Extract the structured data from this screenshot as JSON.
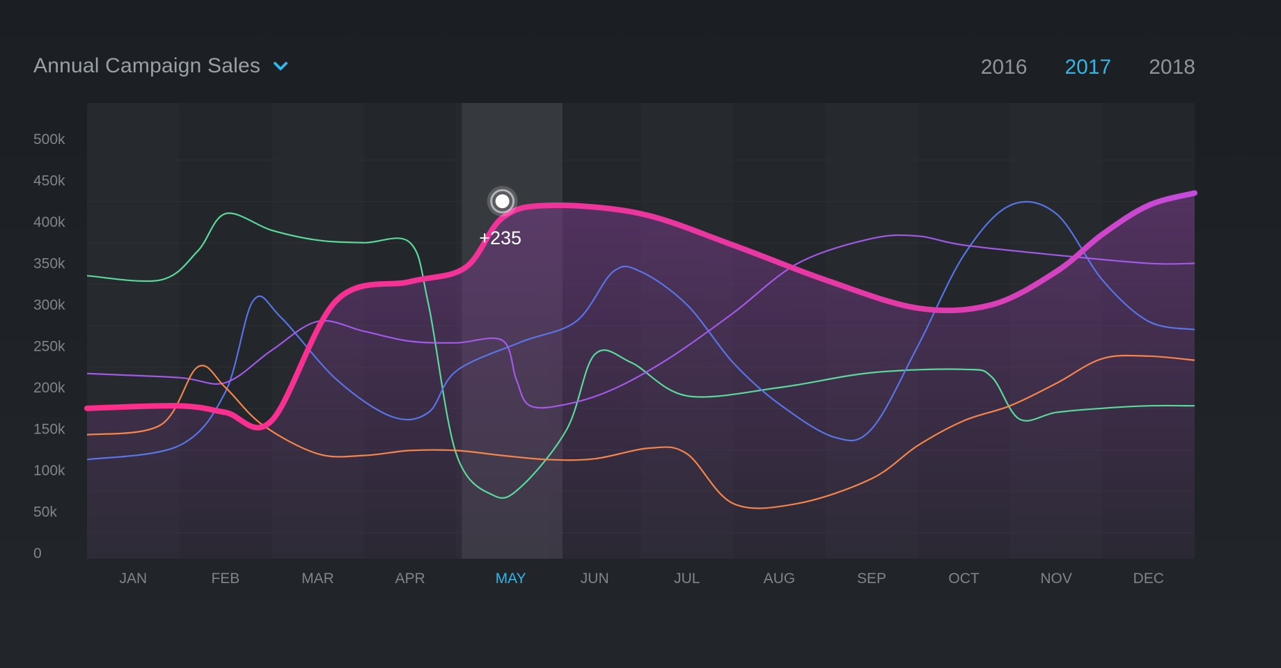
{
  "header": {
    "title": "Annual Campaign Sales",
    "dropdown_icon": "chevron-down-icon",
    "accent_color": "#33b5e5"
  },
  "year_tabs": [
    {
      "label": "2016",
      "active": false
    },
    {
      "label": "2017",
      "active": true
    },
    {
      "label": "2018",
      "active": false
    }
  ],
  "chart_data": {
    "type": "line",
    "title": "",
    "xlabel": "",
    "ylabel": "",
    "categories": [
      "JAN",
      "FEB",
      "MAR",
      "APR",
      "MAY",
      "JUN",
      "JUL",
      "AUG",
      "SEP",
      "OCT",
      "NOV",
      "DEC"
    ],
    "highlight_category": "MAY",
    "y_ticks": [
      "0",
      "50k",
      "100k",
      "150k",
      "200k",
      "250k",
      "300k",
      "350k",
      "400k",
      "450k",
      "500k"
    ],
    "ylim": [
      0,
      500000
    ],
    "grid": true,
    "legend": "none",
    "primary_series": {
      "color": "#ff2d8a",
      "color_end": "#c44bdc",
      "fill": true,
      "x": [
        0,
        0.5,
        1.0,
        1.5,
        2.2,
        3.0,
        3.6,
        4.0,
        4.5,
        5.5,
        6.5,
        7.5,
        8.5,
        9.3,
        10.0,
        10.5,
        11.0,
        11.5
      ],
      "values": [
        175000,
        178000,
        170000,
        160000,
        305000,
        328000,
        345000,
        405000,
        420000,
        410000,
        372000,
        330000,
        296000,
        300000,
        340000,
        385000,
        420000,
        435000
      ]
    },
    "series": [
      {
        "color": "#5de3a0",
        "x": [
          0,
          0.3,
          0.7,
          1.0,
          1.5,
          2.0,
          2.5,
          3.0,
          3.2,
          3.5,
          3.9,
          4.2,
          4.7,
          5.0,
          5.4,
          6.0,
          7.0,
          8.0,
          9.0,
          9.3,
          9.6,
          10.0,
          10.5,
          11.0,
          11.5
        ],
        "values": [
          335000,
          330000,
          365000,
          410000,
          390000,
          378000,
          375000,
          375000,
          300000,
          120000,
          70000,
          80000,
          150000,
          240000,
          230000,
          190000,
          200000,
          218000,
          222000,
          213000,
          162000,
          170000,
          175000,
          178000,
          178000
        ]
      },
      {
        "color": "#5a78ee",
        "x": [
          0,
          0.5,
          1.0,
          1.3,
          1.6,
          2.2,
          2.8,
          3.2,
          3.5,
          4.2,
          4.8,
          5.2,
          5.5,
          6.0,
          6.5,
          7.0,
          7.6,
          8.0,
          8.5,
          9.0,
          9.5,
          10.0,
          10.5,
          11.0,
          11.5
        ],
        "values": [
          113000,
          130000,
          195000,
          305000,
          285000,
          210000,
          165000,
          170000,
          220000,
          255000,
          280000,
          340000,
          340000,
          300000,
          230000,
          180000,
          140000,
          150000,
          250000,
          360000,
          420000,
          410000,
          330000,
          280000,
          270000
        ]
      },
      {
        "color": "#a85cf0",
        "x": [
          0,
          0.5,
          1.0,
          1.5,
          2.0,
          2.5,
          3.0,
          3.5,
          4.0,
          4.15,
          4.3,
          4.7,
          5.2,
          5.8,
          6.5,
          7.2,
          8.0,
          8.5,
          9.0,
          10.0,
          11.0,
          11.5
        ],
        "values": [
          217000,
          212000,
          206000,
          245000,
          280000,
          268000,
          256000,
          254000,
          257000,
          210000,
          178000,
          180000,
          198000,
          235000,
          290000,
          350000,
          380000,
          383000,
          372000,
          360000,
          350000,
          350000
        ]
      },
      {
        "color": "#ff8a4c",
        "x": [
          0,
          0.3,
          0.7,
          1.0,
          1.4,
          2.0,
          2.5,
          3.0,
          3.5,
          4.0,
          4.5,
          5.0,
          5.6,
          6.0,
          6.5,
          7.2,
          8.0,
          8.5,
          9.0,
          9.5,
          10.0,
          10.5,
          11.0,
          11.5
        ],
        "values": [
          143000,
          155000,
          225000,
          200000,
          155000,
          120000,
          118000,
          124000,
          124000,
          118000,
          113000,
          114000,
          127000,
          120000,
          60000,
          60000,
          90000,
          130000,
          160000,
          178000,
          205000,
          235000,
          238000,
          233000
        ]
      }
    ],
    "highlight_point": {
      "category": "MAY",
      "value": 420000,
      "label": "+235"
    }
  }
}
